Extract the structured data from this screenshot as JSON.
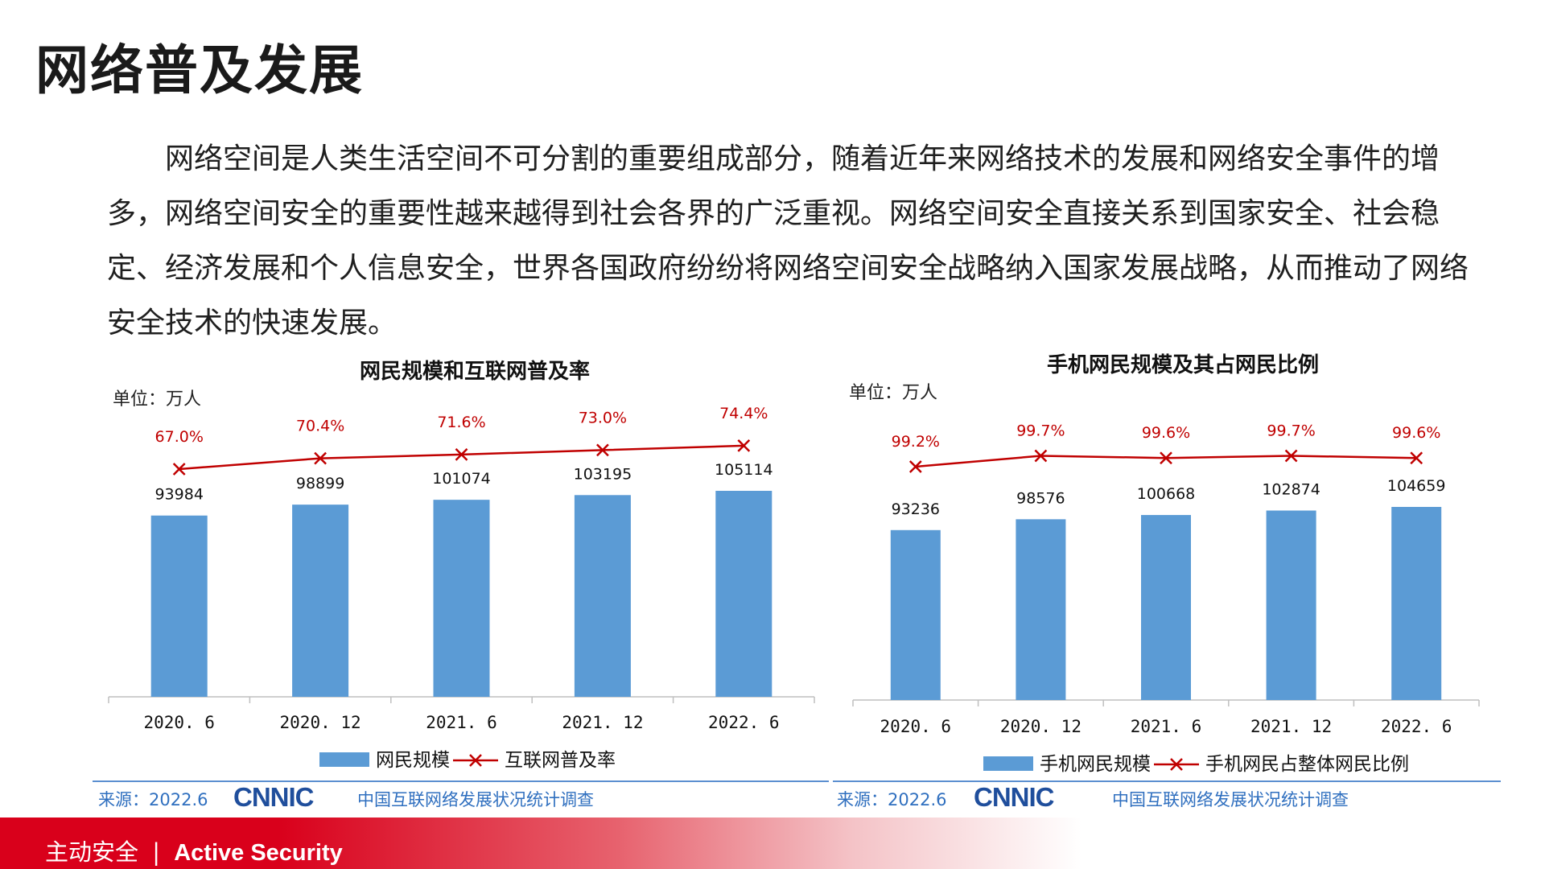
{
  "page": {
    "title": "网络普及发展",
    "paragraph": "网络空间是人类生活空间不可分割的重要组成部分，随着近年来网络技术的发展和网络安全事件的增多，网络空间安全的重要性越来越得到社会各界的广泛重视。网络空间安全直接关系到国家安全、社会稳定、经济发展和个人信息安全，世界各国政府纷纷将网络空间安全战略纳入国家发展战略，从而推动了网络安全技术的快速发展。",
    "footer_cn": "主动安全",
    "footer_sep": "|",
    "footer_en": "Active Security"
  },
  "sources": [
    {
      "label": "来源：2022.6",
      "logo": "CNNIC",
      "desc": "中国互联网络发展状况统计调查"
    },
    {
      "label": "来源：2022.6",
      "logo": "CNNIC",
      "desc": "中国互联网络发展状况统计调查"
    }
  ],
  "colors": {
    "bar": "#5b9bd5",
    "line": "#c00000",
    "accent": "#d9001b",
    "source": "#2f6fbf"
  },
  "chart_data": [
    {
      "type": "bar",
      "title": "网民规模和互联网普及率",
      "unit": "单位：万人",
      "categories": [
        "2020. 6",
        "2020. 12",
        "2021. 6",
        "2021. 12",
        "2022. 6"
      ],
      "series": [
        {
          "name": "网民规模",
          "type": "bar",
          "values": [
            93984,
            98899,
            101074,
            103195,
            105114
          ],
          "labels": [
            "93984",
            "98899",
            "101074",
            "103195",
            "105114"
          ]
        },
        {
          "name": "互联网普及率",
          "type": "line",
          "values": [
            67.0,
            70.4,
            71.6,
            73.0,
            74.4
          ],
          "labels": [
            "67.0%",
            "70.4%",
            "71.6%",
            "73.0%",
            "74.4%"
          ]
        }
      ],
      "legend": "bottom"
    },
    {
      "type": "bar",
      "title": "手机网民规模及其占网民比例",
      "unit": "单位：万人",
      "categories": [
        "2020. 6",
        "2020. 12",
        "2021. 6",
        "2021. 12",
        "2022. 6"
      ],
      "series": [
        {
          "name": "手机网民规模",
          "type": "bar",
          "values": [
            93236,
            98576,
            100668,
            102874,
            104659
          ],
          "labels": [
            "93236",
            "98576",
            "100668",
            "102874",
            "104659"
          ]
        },
        {
          "name": "手机网民占整体网民比例",
          "type": "line",
          "values": [
            99.2,
            99.7,
            99.6,
            99.7,
            99.6
          ],
          "labels": [
            "99.2%",
            "99.7%",
            "99.6%",
            "99.7%",
            "99.6%"
          ]
        }
      ],
      "legend": "bottom"
    }
  ]
}
